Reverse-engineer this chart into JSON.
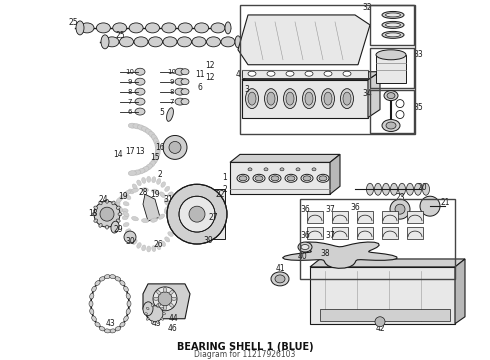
{
  "title": "BEARING SHELL 1 (BLUE)",
  "subtitle": "Diagram for 11217926103",
  "bg": "#ffffff",
  "lc": "#1a1a1a",
  "gray1": "#e8e8e8",
  "gray2": "#d0d0d0",
  "gray3": "#b8b8b8",
  "figw": 4.9,
  "figh": 3.6,
  "dpi": 100
}
